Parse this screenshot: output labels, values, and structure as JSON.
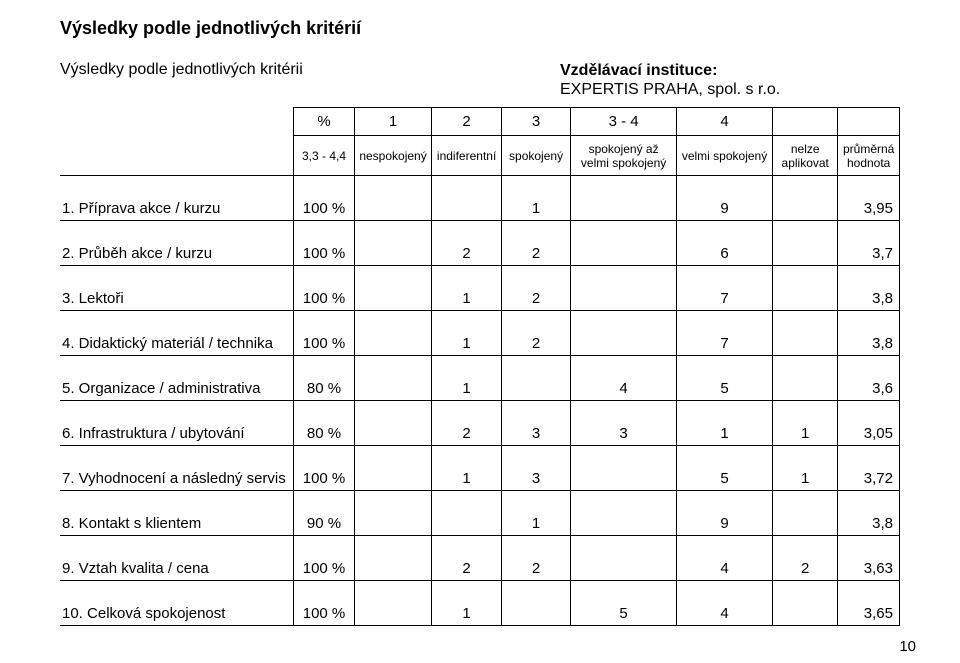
{
  "title": "Výsledky podle jednotlivých kritérií",
  "subtitle_left": "Výsledky podle jednotlivých kritérii",
  "institution_label": "Vzdělávací instituce:",
  "institution_value": "EXPERTIS PRAHA, spol. s r.o.",
  "page_number": "10",
  "header": {
    "pct": "%",
    "c1": "1",
    "c2": "2",
    "c3": "3",
    "c34": "3 - 4",
    "c4": "4",
    "scale": "3,3 - 4,4",
    "l1": "nespokojený",
    "l2": "indiferentní",
    "l3": "spokojený",
    "l34a": "spokojený až",
    "l34b": "velmi spokojený",
    "l4": "velmi spokojený",
    "nelze_a": "nelze",
    "nelze_b": "aplikovat",
    "avg_a": "průměrná",
    "avg_b": "hodnota"
  },
  "rows": [
    {
      "label": "1. Příprava akce / kurzu",
      "pct": "100 %",
      "c1": "",
      "c2": "",
      "c3": "1",
      "c34": "",
      "c4": "9",
      "nelze": "",
      "avg": "3,95"
    },
    {
      "label": "2. Průběh akce / kurzu",
      "pct": "100 %",
      "c1": "",
      "c2": "2",
      "c3": "2",
      "c34": "",
      "c4": "6",
      "nelze": "",
      "avg": "3,7"
    },
    {
      "label": "3. Lektoři",
      "pct": "100 %",
      "c1": "",
      "c2": "1",
      "c3": "2",
      "c34": "",
      "c4": "7",
      "nelze": "",
      "avg": "3,8"
    },
    {
      "label": "4. Didaktický materiál / technika",
      "pct": "100 %",
      "c1": "",
      "c2": "1",
      "c3": "2",
      "c34": "",
      "c4": "7",
      "nelze": "",
      "avg": "3,8"
    },
    {
      "label": "5. Organizace / administrativa",
      "pct": "80 %",
      "c1": "",
      "c2": "1",
      "c3": "",
      "c34": "4",
      "c4": "5",
      "nelze": "",
      "avg": "3,6"
    },
    {
      "label": "6. Infrastruktura / ubytování",
      "pct": "80 %",
      "c1": "",
      "c2": "2",
      "c3": "3",
      "c34": "3",
      "c4": "1",
      "nelze": "1",
      "avg": "3,05"
    },
    {
      "label": "7. Vyhodnocení a následný servis",
      "pct": "100 %",
      "c1": "",
      "c2": "1",
      "c3": "3",
      "c34": "",
      "c4": "5",
      "nelze": "1",
      "avg": "3,72"
    },
    {
      "label": "8. Kontakt s klientem",
      "pct": "90 %",
      "c1": "",
      "c2": "",
      "c3": "1",
      "c34": "",
      "c4": "9",
      "nelze": "",
      "avg": "3,8"
    },
    {
      "label": "9. Vztah kvalita / cena",
      "pct": "100 %",
      "c1": "",
      "c2": "2",
      "c3": "2",
      "c34": "",
      "c4": "4",
      "nelze": "2",
      "avg": "3,63"
    },
    {
      "label": "10. Celková spokojenost",
      "pct": "100 %",
      "c1": "",
      "c2": "1",
      "c3": "",
      "c34": "5",
      "c4": "4",
      "nelze": "",
      "avg": "3,65"
    }
  ]
}
